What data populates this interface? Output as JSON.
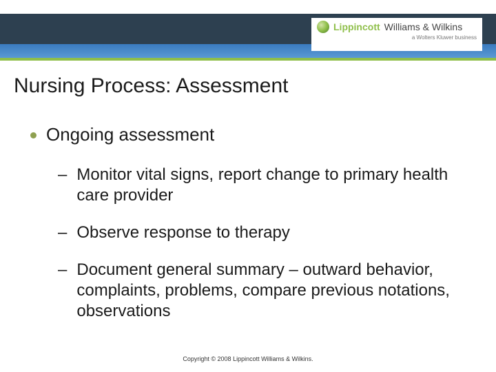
{
  "header": {
    "brand1": "Lippincott",
    "brand2": "Williams & Wilkins",
    "sub": "a Wolters Kluwer business",
    "colors": {
      "dark_band": "#2d4050",
      "blue_band_top": "#3a7bbf",
      "blue_band_bottom": "#5a99d4",
      "green_line": "#8fbf4a"
    }
  },
  "slide": {
    "title": "Nursing Process: Assessment",
    "bullet": "Ongoing assessment",
    "subs": [
      "Monitor vital signs, report change to primary health care provider",
      "Observe response to therapy",
      "Document general summary – outward behavior, complaints, problems, compare previous notations, observations"
    ]
  },
  "footer": {
    "copyright": "Copyright © 2008 Lippincott Williams & Wilkins."
  },
  "style": {
    "title_fontsize": 30,
    "bullet_fontsize": 26,
    "sub_fontsize": 24,
    "bullet_dot_color": "#8fa050",
    "text_color": "#1a1a1a",
    "background_color": "#ffffff"
  }
}
